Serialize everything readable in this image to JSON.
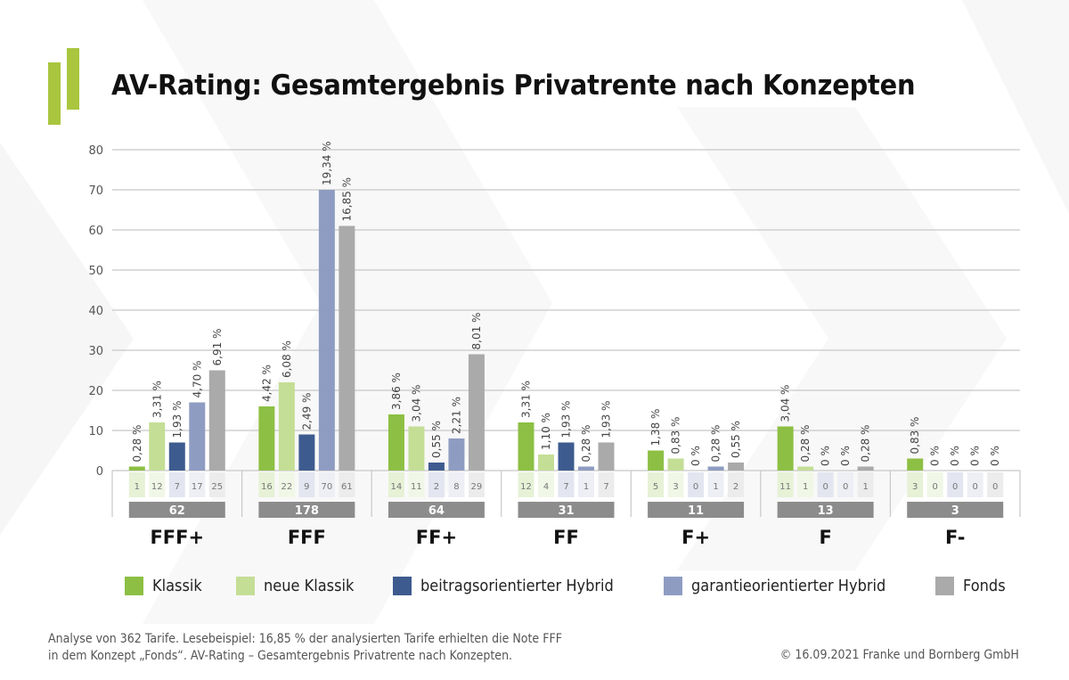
{
  "header": {
    "title": "AV-Rating: Gesamtergebnis Privatrente nach Konzepten"
  },
  "chart_data": {
    "type": "bar",
    "title": "AV-Rating: Gesamtergebnis Privatrente nach Konzepten",
    "xlabel": "",
    "ylabel": "",
    "ylim": [
      0,
      80
    ],
    "yticks": [
      "0",
      "10",
      "20",
      "30",
      "40",
      "50",
      "60",
      "70",
      "80"
    ],
    "grid": true,
    "legend_position": "bottom",
    "categories": [
      "FFF+",
      "FFF",
      "FF+",
      "FF",
      "F+",
      "F",
      "F-"
    ],
    "totals": [
      "62",
      "178",
      "64",
      "31",
      "11",
      "13",
      "3"
    ],
    "series": [
      {
        "name": "Klassik",
        "color": "#8dbf44",
        "light": "#e6f1d6",
        "values": [
          1,
          16,
          14,
          12,
          5,
          11,
          3
        ],
        "labels": [
          "0,28 %",
          "4,42 %",
          "3,86 %",
          "3,31 %",
          "1,38 %",
          "3,04 %",
          "0,83 %"
        ]
      },
      {
        "name": "neue Klassik",
        "color": "#c4de96",
        "light": "#f1f7e6",
        "values": [
          12,
          22,
          11,
          4,
          3,
          1,
          0
        ],
        "labels": [
          "3,31 %",
          "6,08 %",
          "3,04 %",
          "1,10 %",
          "0,83 %",
          "0,28 %",
          "0 %"
        ]
      },
      {
        "name": "beitragsorientierter Hybrid",
        "color": "#3e5b8f",
        "light": "#e3e6f0",
        "values": [
          7,
          9,
          2,
          7,
          0,
          0,
          0
        ],
        "labels": [
          "1,93 %",
          "2,49 %",
          "0,55 %",
          "1,93 %",
          "0 %",
          "0 %",
          "0 %"
        ]
      },
      {
        "name": "garantieorientierter Hybrid",
        "color": "#8f9cc2",
        "light": "#eeeff5",
        "values": [
          17,
          70,
          8,
          1,
          1,
          0,
          0
        ],
        "labels": [
          "4,70 %",
          "19,34 %",
          "2,21 %",
          "0,28 %",
          "0,28 %",
          "0 %",
          "0 %"
        ]
      },
      {
        "name": "Fonds",
        "color": "#aaaaaa",
        "light": "#ececec",
        "values": [
          25,
          61,
          29,
          7,
          2,
          1,
          0
        ],
        "labels": [
          "6,91 %",
          "16,85 %",
          "8,01 %",
          "1,93 %",
          "0,55 %",
          "0,28 %",
          "0 %"
        ]
      }
    ]
  },
  "footer": {
    "note_line1": "Analyse von 362 Tarife. Lesebeispiel: 16,85 % der analysierten Tarife erhielten die Note FFF",
    "note_line2": "in dem Konzept „Fonds“. AV-Rating – Gesamtergebnis Privatrente nach Konzepten.",
    "copyright": "© 16.09.2021 Franke und Bornberg GmbH"
  }
}
